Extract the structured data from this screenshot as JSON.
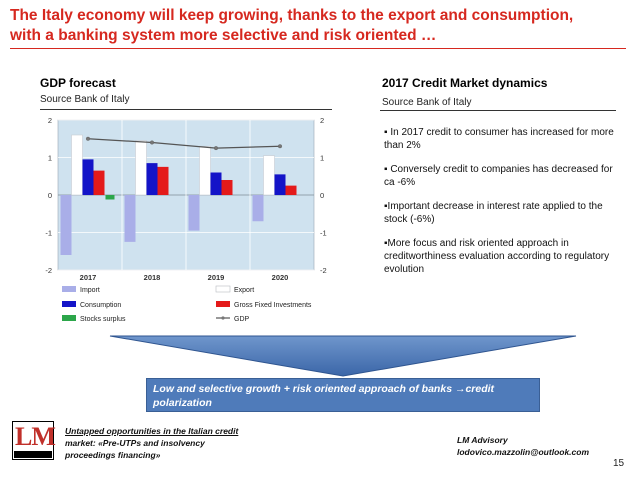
{
  "slide": {
    "title_line1": "The Italy economy will keep growing, thanks to the export and consumption,",
    "title_line2": "with a banking system more selective and risk oriented …",
    "page_number": "15"
  },
  "left_section": {
    "title": "GDP forecast",
    "source": "Source Bank of Italy"
  },
  "right_section": {
    "title": "2017 Credit Market dynamics",
    "source": "Source Bank of Italy",
    "bullets": [
      "▪ In 2017 credit to consumer has increased for more than 2%",
      "▪ Conversely credit to companies has decreased for ca -6%",
      "▪Important decrease in interest rate applied to the stock (-6%)",
      "▪More focus and risk oriented approach in creditworthiness evaluation according to regulatory evolution"
    ]
  },
  "conclusion": {
    "text": "Low and selective growth + risk oriented approach of banks",
    "arrow_glyph": "→",
    "text_end": "credit polarization"
  },
  "footer": {
    "left_line1": "Untapped opportunities in the Italian credit",
    "left_line2": "market: «Pre-UTPs and insolvency",
    "left_line3": "proceedings financing»",
    "right_line1": "LM Advisory",
    "right_line2": "lodovico.mazzolin@outlook.com",
    "logo_letters": "LM",
    "logo_sub": "ADVISORY"
  },
  "chart_data": {
    "type": "bar",
    "categories": [
      "2017",
      "2018",
      "2019",
      "2020"
    ],
    "ylim": [
      -2,
      2
    ],
    "yticks": [
      "2",
      "1",
      "0",
      "-1",
      "-2"
    ],
    "series": [
      {
        "name": "Import",
        "color": "#a9aee8",
        "values": [
          -1.6,
          -1.25,
          -0.95,
          -0.7
        ]
      },
      {
        "name": "Export",
        "color": "#ffffff",
        "values": [
          1.6,
          1.45,
          1.3,
          1.05
        ]
      },
      {
        "name": "Consumption",
        "color": "#1414c8",
        "values": [
          0.95,
          0.85,
          0.6,
          0.55
        ]
      },
      {
        "name": "Gross Fixed Investments",
        "color": "#e41a1a",
        "values": [
          0.65,
          0.75,
          0.4,
          0.25
        ]
      },
      {
        "name": "Stocks surplus",
        "color": "#2ca64a",
        "values": [
          -0.12,
          0.0,
          0.0,
          0.0
        ]
      }
    ],
    "gdp": {
      "name": "GDP",
      "color": "#555555",
      "values": [
        1.5,
        1.4,
        1.25,
        1.3
      ]
    },
    "legend_order": [
      "Import",
      "Export",
      "Consumption",
      "Gross Fixed Investments",
      "Stocks surplus",
      "GDP"
    ],
    "background": "#cfe2ef",
    "grid": true
  }
}
